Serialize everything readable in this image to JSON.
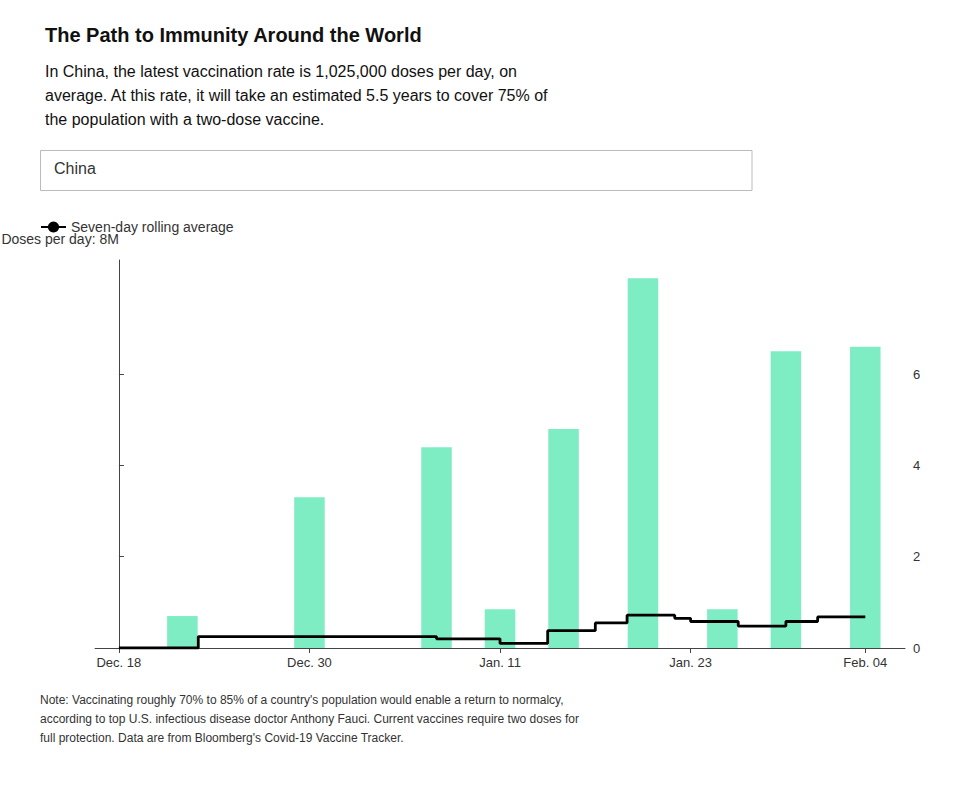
{
  "chart_data": {
    "type": "bar",
    "title": "The Path to Immunity Around the World",
    "subtitle": "In China, the latest vaccination rate is 1,025,000 doses per day, on\naverage. At this rate, it will take an estimated 5.5 years to cover 75% of\nthe population with a two-dose vaccine.",
    "annotations": [
      "China",
      "Note: Vaccinating roughly 70% to 85% of a country's population would enable a return to normalcy,\naccording to top U.S. infectious disease doctor Anthony Fauci. Current vaccines require two doses for\nfull protection. Data are from Bloomberg's Covid-19 Vaccine Tracker."
    ],
    "ylabel": "Doses per day: 8M",
    "xlim": [
      -1.5,
      49.5
    ],
    "xticks": [
      {
        "value": 0,
        "label": "Dec. 18"
      },
      {
        "value": 12,
        "label": "Dec. 30"
      },
      {
        "value": 24,
        "label": "Jan. 11"
      },
      {
        "value": 36,
        "label": "Jan. 23"
      },
      {
        "value": 47,
        "label": "Feb. 04"
      }
    ],
    "ylim": [
      0,
      8.5
    ],
    "yticks": [
      0,
      2,
      4,
      6
    ],
    "grid": false,
    "legend": "top-left",
    "series": [
      {
        "type": "bar",
        "color": "#7EEDC4",
        "x": [
          4,
          12,
          20,
          24,
          28,
          33,
          38,
          42,
          47
        ],
        "values": [
          0.7,
          3.3,
          4.4,
          0.85,
          4.8,
          8.1,
          0.85,
          6.5,
          6.6
        ]
      },
      {
        "name": "Seven-day rolling average",
        "type": "line",
        "color": "#000000",
        "line_style": "step",
        "x": [
          0,
          4,
          5,
          6,
          7,
          8,
          9,
          10,
          11,
          12,
          13,
          14,
          15,
          16,
          17,
          18,
          19,
          20,
          21,
          22,
          23,
          24,
          25,
          26,
          27,
          28,
          29,
          30,
          31,
          32,
          33,
          34,
          35,
          36,
          37,
          38,
          39,
          40,
          41,
          42,
          43,
          44,
          45,
          46,
          47
        ],
        "values": [
          0.0,
          0.0,
          0.25,
          0.25,
          0.25,
          0.25,
          0.25,
          0.25,
          0.25,
          0.25,
          0.25,
          0.25,
          0.25,
          0.25,
          0.25,
          0.25,
          0.25,
          0.2,
          0.2,
          0.2,
          0.2,
          0.1,
          0.1,
          0.1,
          0.38,
          0.38,
          0.38,
          0.55,
          0.55,
          0.72,
          0.72,
          0.72,
          0.65,
          0.58,
          0.58,
          0.58,
          0.48,
          0.48,
          0.48,
          0.58,
          0.58,
          0.68,
          0.68,
          0.68,
          0.68
        ]
      }
    ]
  }
}
